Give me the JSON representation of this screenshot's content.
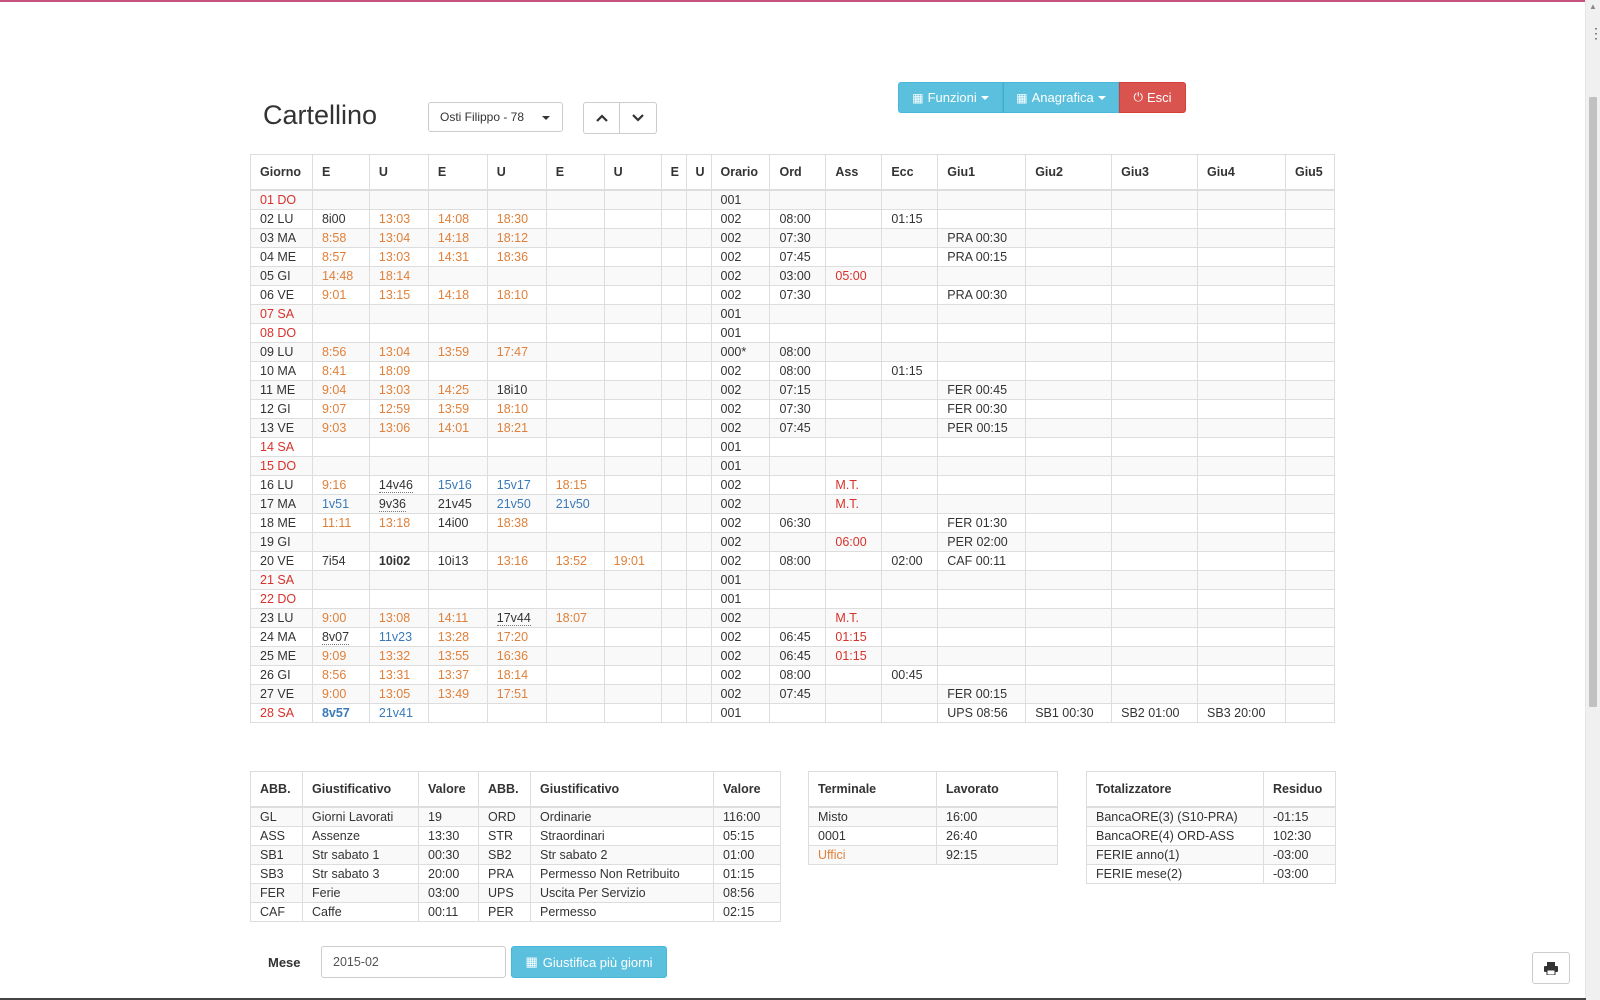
{
  "header": {
    "title": "Cartellino",
    "employee_select": "Osti Filippo - 78",
    "buttons": {
      "funzioni": "Funzioni",
      "anagrafica": "Anagrafica",
      "esci": "Esci"
    }
  },
  "colors": {
    "red": "#d9312b",
    "orange": "#e0803a",
    "blue": "#3a7ab8",
    "info": "#5bc0de",
    "danger": "#d9534f"
  },
  "main_table": {
    "headers": [
      "Giorno",
      "E",
      "U",
      "E",
      "U",
      "E",
      "U",
      "E",
      "U",
      "Orario",
      "Ord",
      "Ass",
      "Ecc",
      "Giu1",
      "Giu2",
      "Giu3",
      "Giu4",
      "Giu5"
    ],
    "rows": [
      {
        "cells": [
          "01 DO",
          "",
          "",
          "",
          "",
          "",
          "",
          "",
          "",
          "001",
          "",
          "",
          "",
          "",
          "",
          "",
          "",
          ""
        ],
        "styles": {
          "0": "red"
        }
      },
      {
        "cells": [
          "02 LU",
          "8i00",
          "13:03",
          "14:08",
          "18:30",
          "",
          "",
          "",
          "",
          "002",
          "08:00",
          "",
          "01:15",
          "",
          "",
          "",
          "",
          ""
        ],
        "styles": {
          "2": "org",
          "3": "org",
          "4": "org"
        }
      },
      {
        "cells": [
          "03 MA",
          "8:58",
          "13:04",
          "14:18",
          "18:12",
          "",
          "",
          "",
          "",
          "002",
          "07:30",
          "",
          "",
          "PRA 00:30",
          "",
          "",
          "",
          ""
        ],
        "styles": {
          "1": "org",
          "2": "org",
          "3": "org",
          "4": "org"
        }
      },
      {
        "cells": [
          "04 ME",
          "8:57",
          "13:03",
          "14:31",
          "18:36",
          "",
          "",
          "",
          "",
          "002",
          "07:45",
          "",
          "",
          "PRA 00:15",
          "",
          "",
          "",
          ""
        ],
        "styles": {
          "1": "org",
          "2": "org",
          "3": "org",
          "4": "org"
        }
      },
      {
        "cells": [
          "05 GI",
          "14:48",
          "18:14",
          "",
          "",
          "",
          "",
          "",
          "",
          "002",
          "03:00",
          "05:00",
          "",
          "",
          "",
          "",
          "",
          ""
        ],
        "styles": {
          "1": "org",
          "2": "org",
          "11": "red"
        }
      },
      {
        "cells": [
          "06 VE",
          "9:01",
          "13:15",
          "14:18",
          "18:10",
          "",
          "",
          "",
          "",
          "002",
          "07:30",
          "",
          "",
          "PRA 00:30",
          "",
          "",
          "",
          ""
        ],
        "styles": {
          "1": "org",
          "2": "org",
          "3": "org",
          "4": "org"
        }
      },
      {
        "cells": [
          "07 SA",
          "",
          "",
          "",
          "",
          "",
          "",
          "",
          "",
          "001",
          "",
          "",
          "",
          "",
          "",
          "",
          "",
          ""
        ],
        "styles": {
          "0": "red"
        }
      },
      {
        "cells": [
          "08 DO",
          "",
          "",
          "",
          "",
          "",
          "",
          "",
          "",
          "001",
          "",
          "",
          "",
          "",
          "",
          "",
          "",
          ""
        ],
        "styles": {
          "0": "red"
        }
      },
      {
        "cells": [
          "09 LU",
          "8:56",
          "13:04",
          "13:59",
          "17:47",
          "",
          "",
          "",
          "",
          "000*",
          "08:00",
          "",
          "",
          "",
          "",
          "",
          "",
          ""
        ],
        "styles": {
          "1": "org",
          "2": "org",
          "3": "org",
          "4": "org"
        }
      },
      {
        "cells": [
          "10 MA",
          "8:41",
          "18:09",
          "",
          "",
          "",
          "",
          "",
          "",
          "002",
          "08:00",
          "",
          "01:15",
          "",
          "",
          "",
          "",
          ""
        ],
        "styles": {
          "1": "org",
          "2": "org"
        }
      },
      {
        "cells": [
          "11 ME",
          "9:04",
          "13:03",
          "14:25",
          "18i10",
          "",
          "",
          "",
          "",
          "002",
          "07:15",
          "",
          "",
          "FER 00:45",
          "",
          "",
          "",
          ""
        ],
        "styles": {
          "1": "org",
          "2": "org",
          "3": "org"
        }
      },
      {
        "cells": [
          "12 GI",
          "9:07",
          "12:59",
          "13:59",
          "18:10",
          "",
          "",
          "",
          "",
          "002",
          "07:30",
          "",
          "",
          "FER 00:30",
          "",
          "",
          "",
          ""
        ],
        "styles": {
          "1": "org",
          "2": "org",
          "3": "org",
          "4": "org"
        }
      },
      {
        "cells": [
          "13 VE",
          "9:03",
          "13:06",
          "14:01",
          "18:21",
          "",
          "",
          "",
          "",
          "002",
          "07:45",
          "",
          "",
          "PER 00:15",
          "",
          "",
          "",
          ""
        ],
        "styles": {
          "1": "org",
          "2": "org",
          "3": "org",
          "4": "org"
        }
      },
      {
        "cells": [
          "14 SA",
          "",
          "",
          "",
          "",
          "",
          "",
          "",
          "",
          "001",
          "",
          "",
          "",
          "",
          "",
          "",
          "",
          ""
        ],
        "styles": {
          "0": "red"
        }
      },
      {
        "cells": [
          "15 DO",
          "",
          "",
          "",
          "",
          "",
          "",
          "",
          "",
          "001",
          "",
          "",
          "",
          "",
          "",
          "",
          "",
          ""
        ],
        "styles": {
          "0": "red"
        }
      },
      {
        "cells": [
          "16 LU",
          "9:16",
          "14v46",
          "15v16",
          "15v17",
          "18:15",
          "",
          "",
          "",
          "002",
          "",
          "M.T.",
          "",
          "",
          "",
          "",
          "",
          ""
        ],
        "styles": {
          "1": "org",
          "2": "dot",
          "3": "blu",
          "4": "blu",
          "5": "org",
          "11": "red"
        }
      },
      {
        "cells": [
          "17 MA",
          "1v51",
          "9v36",
          "21v45",
          "21v50",
          "21v50",
          "",
          "",
          "",
          "002",
          "",
          "M.T.",
          "",
          "",
          "",
          "",
          "",
          ""
        ],
        "styles": {
          "1": "blu",
          "2": "dot",
          "4": "blu",
          "5": "blu",
          "11": "red"
        }
      },
      {
        "cells": [
          "18 ME",
          "11:11",
          "13:18",
          "14i00",
          "18:38",
          "",
          "",
          "",
          "",
          "002",
          "06:30",
          "",
          "",
          "FER 01:30",
          "",
          "",
          "",
          ""
        ],
        "styles": {
          "1": "org",
          "2": "org",
          "4": "org"
        }
      },
      {
        "cells": [
          "19 GI",
          "",
          "",
          "",
          "",
          "",
          "",
          "",
          "",
          "002",
          "",
          "06:00",
          "",
          "PER 02:00",
          "",
          "",
          "",
          ""
        ],
        "styles": {
          "11": "red"
        }
      },
      {
        "cells": [
          "20 VE",
          "7i54",
          "10i02",
          "10i13",
          "13:16",
          "13:52",
          "19:01",
          "",
          "",
          "002",
          "08:00",
          "",
          "02:00",
          "CAF 00:11",
          "",
          "",
          "",
          ""
        ],
        "styles": {
          "2": "bold",
          "4": "org",
          "5": "org",
          "6": "org"
        }
      },
      {
        "cells": [
          "21 SA",
          "",
          "",
          "",
          "",
          "",
          "",
          "",
          "",
          "001",
          "",
          "",
          "",
          "",
          "",
          "",
          "",
          ""
        ],
        "styles": {
          "0": "red"
        }
      },
      {
        "cells": [
          "22 DO",
          "",
          "",
          "",
          "",
          "",
          "",
          "",
          "",
          "001",
          "",
          "",
          "",
          "",
          "",
          "",
          "",
          ""
        ],
        "styles": {
          "0": "red"
        }
      },
      {
        "cells": [
          "23 LU",
          "9:00",
          "13:08",
          "14:11",
          "17v44",
          "18:07",
          "",
          "",
          "",
          "002",
          "",
          "M.T.",
          "",
          "",
          "",
          "",
          "",
          ""
        ],
        "styles": {
          "1": "org",
          "2": "org",
          "3": "org",
          "4": "dot",
          "5": "org",
          "11": "red"
        }
      },
      {
        "cells": [
          "24 MA",
          "8v07",
          "11v23",
          "13:28",
          "17:20",
          "",
          "",
          "",
          "",
          "002",
          "06:45",
          "01:15",
          "",
          "",
          "",
          "",
          "",
          ""
        ],
        "styles": {
          "1": "dot",
          "2": "blu",
          "3": "org",
          "4": "org",
          "11": "red"
        }
      },
      {
        "cells": [
          "25 ME",
          "9:09",
          "13:32",
          "13:55",
          "16:36",
          "",
          "",
          "",
          "",
          "002",
          "06:45",
          "01:15",
          "",
          "",
          "",
          "",
          "",
          ""
        ],
        "styles": {
          "1": "org",
          "2": "org",
          "3": "org",
          "4": "org",
          "11": "red"
        }
      },
      {
        "cells": [
          "26 GI",
          "8:56",
          "13:31",
          "13:37",
          "18:14",
          "",
          "",
          "",
          "",
          "002",
          "08:00",
          "",
          "00:45",
          "",
          "",
          "",
          "",
          ""
        ],
        "styles": {
          "1": "org",
          "2": "org",
          "3": "org",
          "4": "org"
        }
      },
      {
        "cells": [
          "27 VE",
          "9:00",
          "13:05",
          "13:49",
          "17:51",
          "",
          "",
          "",
          "",
          "002",
          "07:45",
          "",
          "",
          "FER 00:15",
          "",
          "",
          "",
          ""
        ],
        "styles": {
          "1": "org",
          "2": "org",
          "3": "org",
          "4": "org"
        }
      },
      {
        "cells": [
          "28 SA",
          "8v57",
          "21v41",
          "",
          "",
          "",
          "",
          "",
          "",
          "001",
          "",
          "",
          "",
          "UPS 08:56",
          "SB1 00:30",
          "SB2 01:00",
          "SB3 20:00",
          ""
        ],
        "styles": {
          "0": "red",
          "1": "blu bold",
          "2": "blu"
        }
      }
    ]
  },
  "abb_table": {
    "headers": [
      "ABB.",
      "Giustificativo",
      "Valore",
      "ABB.",
      "Giustificativo",
      "Valore"
    ],
    "rows": [
      [
        "GL",
        "Giorni Lavorati",
        "19",
        "ORD",
        "Ordinarie",
        "116:00"
      ],
      [
        "ASS",
        "Assenze",
        "13:30",
        "STR",
        "Straordinari",
        "05:15"
      ],
      [
        "SB1",
        "Str sabato 1",
        "00:30",
        "SB2",
        "Str sabato 2",
        "01:00"
      ],
      [
        "SB3",
        "Str sabato 3",
        "20:00",
        "PRA",
        "Permesso Non Retribuito",
        "01:15"
      ],
      [
        "FER",
        "Ferie",
        "03:00",
        "UPS",
        "Uscita Per Servizio",
        "08:56"
      ],
      [
        "CAF",
        "Caffe",
        "00:11",
        "PER",
        "Permesso",
        "02:15"
      ]
    ]
  },
  "term_table": {
    "headers": [
      "Terminale",
      "Lavorato"
    ],
    "rows": [
      [
        "Misto",
        "16:00"
      ],
      [
        "0001",
        "26:40"
      ],
      [
        "Uffici",
        "92:15"
      ]
    ]
  },
  "tot_table": {
    "headers": [
      "Totalizzatore",
      "Residuo"
    ],
    "rows": [
      [
        "BancaORE(3) (S10-PRA)",
        "-01:15"
      ],
      [
        "BancaORE(4) ORD-ASS",
        "102:30"
      ],
      [
        "FERIE anno(1)",
        "-03:00"
      ],
      [
        "FERIE mese(2)",
        "-03:00"
      ]
    ]
  },
  "footer": {
    "mese_label": "Mese",
    "mese_value": "2015-02",
    "giustifica_label": "Giustifica più giorni"
  },
  "icons": [
    "list-icon",
    "power-icon",
    "calendar-icon",
    "print-icon",
    "chevron-up-icon",
    "chevron-down-icon"
  ]
}
